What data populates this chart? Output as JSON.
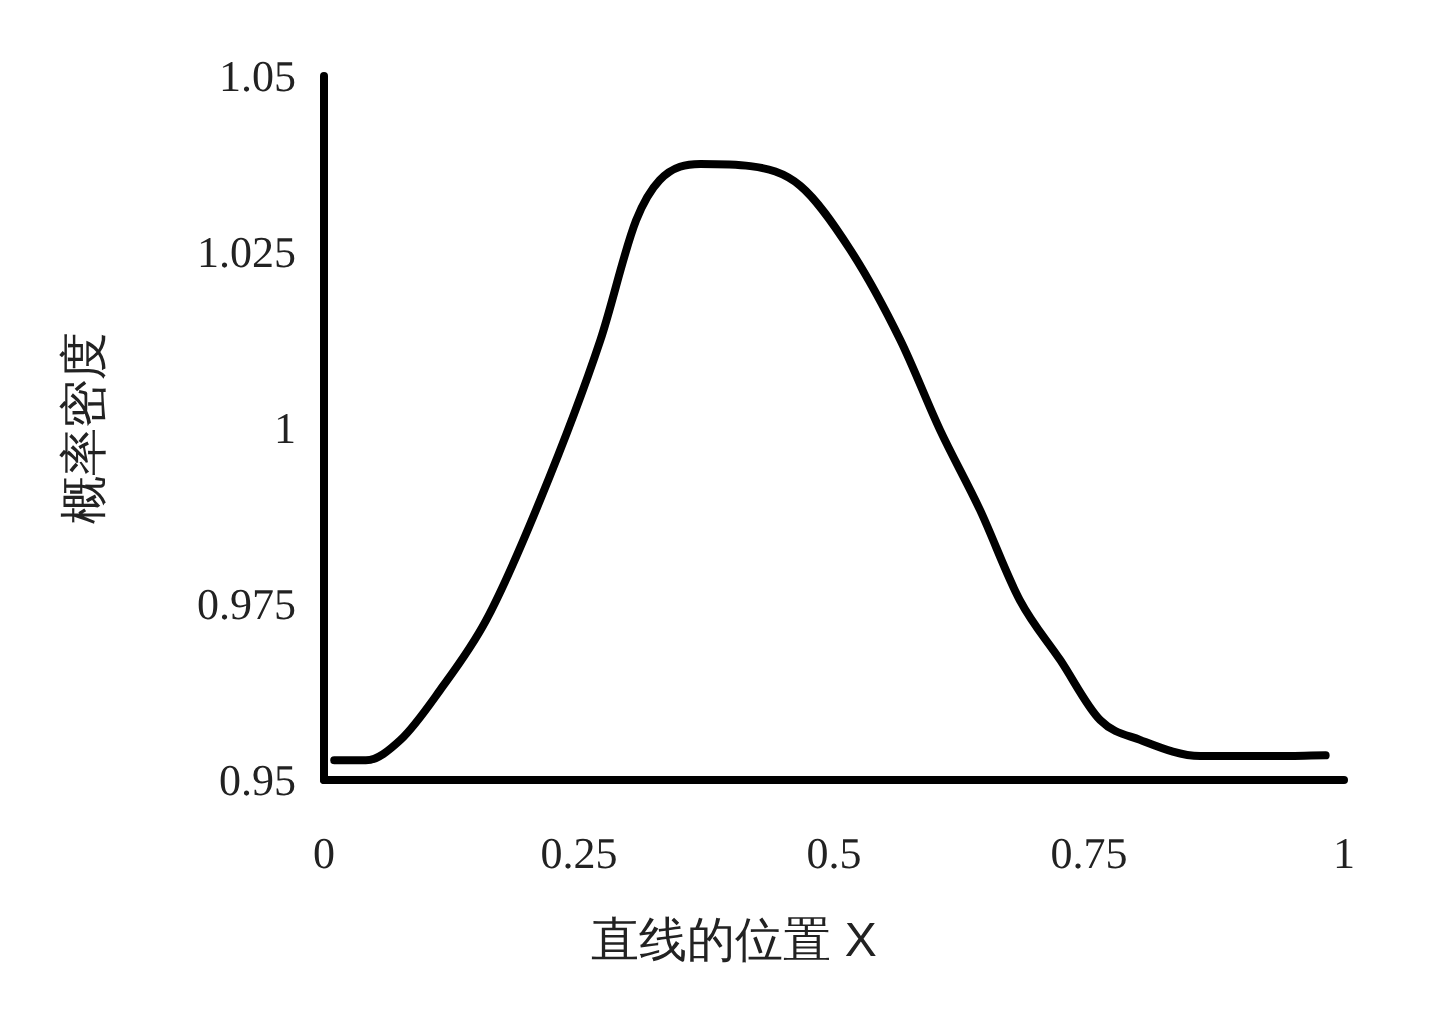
{
  "chart_data": {
    "type": "line",
    "xlabel": "直线的位置 X",
    "ylabel": "概率密度",
    "series": [
      {
        "color": "#000000",
        "x": [
          0.01,
          0.041,
          0.075,
          0.114,
          0.159,
          0.212,
          0.271,
          0.306,
          0.329,
          0.369,
          0.418,
          0.467,
          0.516,
          0.565,
          0.604,
          0.643,
          0.682,
          0.722,
          0.761,
          0.8,
          0.859,
          0.918,
          0.982
        ],
        "values": [
          0.9528,
          0.9528,
          0.9557,
          0.9628,
          0.9727,
          0.9898,
          1.0125,
          1.0295,
          1.0352,
          1.0375,
          1.0372,
          1.0344,
          1.0253,
          1.0125,
          0.9997,
          0.9884,
          0.9756,
          0.967,
          0.9585,
          0.9557,
          0.9534,
          0.9534,
          0.9535
        ]
      }
    ],
    "xlim": [
      0,
      1
    ],
    "xticks": [
      0,
      0.25,
      0.5,
      0.75,
      1
    ],
    "ylim": [
      0.95,
      1.05
    ],
    "yticks": [
      0.95,
      0.975,
      1,
      1.025,
      1.05
    ],
    "grid": false,
    "marker": "none",
    "line_style": "solid"
  }
}
